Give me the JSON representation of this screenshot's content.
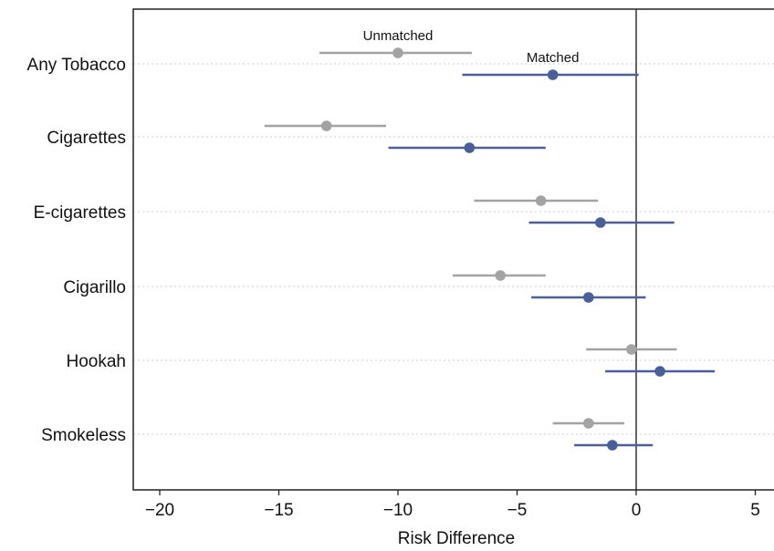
{
  "chart_data": {
    "type": "scatter",
    "subtype": "forest-plot",
    "title": "",
    "xlabel": "Risk Difference",
    "ylabel": "",
    "xlim": [
      -21,
      5
    ],
    "xticks": [
      -20,
      -15,
      -10,
      -5,
      0,
      5
    ],
    "xtick_labels": [
      "−20",
      "−15",
      "−10",
      "−5",
      "0",
      "5"
    ],
    "reference_line_x": 0,
    "grid": "horizontal dotted lines at categories",
    "legend": "none (series labeled by annotations)",
    "categories": [
      "Any Tobacco",
      "Cigarettes",
      "E-cigarettes",
      "Cigarillo",
      "Hookah",
      "Smokeless"
    ],
    "series": [
      {
        "name": "Unmatched",
        "color": "#a3a3a3",
        "points": [
          {
            "category": "Any Tobacco",
            "estimate": -10.0,
            "lower": -13.3,
            "upper": -6.9
          },
          {
            "category": "Cigarettes",
            "estimate": -13.0,
            "lower": -15.6,
            "upper": -10.5
          },
          {
            "category": "E-cigarettes",
            "estimate": -4.0,
            "lower": -6.8,
            "upper": -1.6
          },
          {
            "category": "Cigarillo",
            "estimate": -5.7,
            "lower": -7.7,
            "upper": -3.8
          },
          {
            "category": "Hookah",
            "estimate": -0.2,
            "lower": -2.1,
            "upper": 1.7
          },
          {
            "category": "Smokeless",
            "estimate": -2.0,
            "lower": -3.5,
            "upper": -0.5
          }
        ]
      },
      {
        "name": "Matched",
        "color": "#4a5f9a",
        "points": [
          {
            "category": "Any Tobacco",
            "estimate": -3.5,
            "lower": -7.3,
            "upper": 0.1
          },
          {
            "category": "Cigarettes",
            "estimate": -7.0,
            "lower": -10.4,
            "upper": -3.8
          },
          {
            "category": "E-cigarettes",
            "estimate": -1.5,
            "lower": -4.5,
            "upper": 1.6
          },
          {
            "category": "Cigarillo",
            "estimate": -2.0,
            "lower": -4.4,
            "upper": 0.4
          },
          {
            "category": "Hookah",
            "estimate": 1.0,
            "lower": -1.3,
            "upper": 3.3
          },
          {
            "category": "Smokeless",
            "estimate": -1.0,
            "lower": -2.6,
            "upper": 0.7
          }
        ]
      }
    ],
    "annotations": [
      {
        "text": "Unmatched",
        "x": -10.0,
        "category": "Any Tobacco",
        "series": "Unmatched"
      },
      {
        "text": "Matched",
        "x": -3.5,
        "category": "Any Tobacco",
        "series": "Matched"
      }
    ]
  }
}
